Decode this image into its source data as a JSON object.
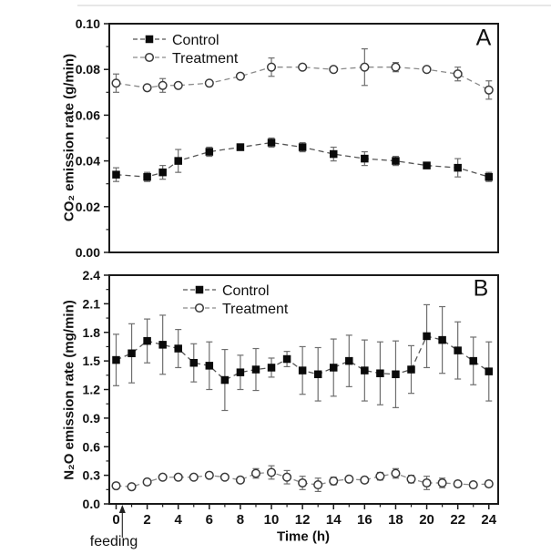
{
  "style_colors": {
    "background": "#ffffff",
    "axis": "#1a1a1a",
    "text": "#111111",
    "control_marker": "#0a0a0a",
    "control_line": "#555555",
    "treatment_stroke": "#3a3a3a",
    "treatment_line": "#8a8a8a",
    "error_bar": "#6e6e6e",
    "top_rule": "#e7e7e7"
  },
  "chart_data": [
    {
      "type": "line",
      "panel_label": "A",
      "ylabel": "CO₂ emission rate (g/min)",
      "xlabel": "",
      "xlim": [
        -0.44,
        24.6
      ],
      "ylim": [
        0,
        0.1
      ],
      "yticks": [
        0,
        0.02,
        0.04,
        0.06,
        0.08,
        0.1
      ],
      "ytick_labels": [
        "0.00",
        "0.02",
        "0.04",
        "0.06",
        "0.08",
        "0.10"
      ],
      "y_minor_step": 0.01,
      "grid": false,
      "legend_position": "top-left-inside",
      "x": [
        0,
        2,
        3,
        4,
        6,
        8,
        10,
        12,
        14,
        16,
        18,
        20,
        22,
        24
      ],
      "series": [
        {
          "name": "Control",
          "marker": "filled-square",
          "values": [
            0.034,
            0.033,
            0.035,
            0.04,
            0.044,
            0.046,
            0.048,
            0.046,
            0.043,
            0.041,
            0.04,
            0.038,
            0.037,
            0.033
          ],
          "errors": [
            0.003,
            0.002,
            0.003,
            0.005,
            0.002,
            0.001,
            0.002,
            0.002,
            0.003,
            0.003,
            0.002,
            0.001,
            0.004,
            0.002
          ]
        },
        {
          "name": "Treatment",
          "marker": "open-circle",
          "values": [
            0.074,
            0.072,
            0.073,
            0.073,
            0.074,
            0.077,
            0.081,
            0.081,
            0.08,
            0.081,
            0.081,
            0.08,
            0.078,
            0.071
          ],
          "errors": [
            0.004,
            0.001,
            0.003,
            0.001,
            0.001,
            0.001,
            0.004,
            0.001,
            0.001,
            0.008,
            0.002,
            0.001,
            0.003,
            0.004
          ]
        }
      ]
    },
    {
      "type": "line",
      "panel_label": "B",
      "ylabel": "N₂O emission rate (mg/min)",
      "xlabel": "Time (h)",
      "xlim": [
        -0.44,
        24.6
      ],
      "ylim": [
        0,
        2.4
      ],
      "yticks": [
        0,
        0.3,
        0.6,
        0.9,
        1.2,
        1.5,
        1.8,
        2.1,
        2.4
      ],
      "ytick_labels": [
        "0.0",
        "0.3",
        "0.6",
        "0.9",
        "1.2",
        "1.5",
        "1.8",
        "2.1",
        "2.4"
      ],
      "y_minor_step": 0.15,
      "xticks": [
        0,
        2,
        4,
        6,
        8,
        10,
        12,
        14,
        16,
        18,
        20,
        22,
        24
      ],
      "xtick_labels": [
        "0",
        "2",
        "4",
        "6",
        "8",
        "10",
        "12",
        "14",
        "16",
        "18",
        "20",
        "22",
        "24"
      ],
      "x_minor_step": 1,
      "grid": false,
      "legend_position": "top-center-inside",
      "annotation": {
        "text": "feeding",
        "x_hours": 0.4
      },
      "x": [
        0,
        1,
        2,
        3,
        4,
        5,
        6,
        7,
        8,
        9,
        10,
        11,
        12,
        13,
        14,
        15,
        16,
        17,
        18,
        19,
        20,
        21,
        22,
        23,
        24
      ],
      "series": [
        {
          "name": "Control",
          "marker": "filled-square",
          "values": [
            1.51,
            1.58,
            1.71,
            1.67,
            1.63,
            1.48,
            1.45,
            1.3,
            1.38,
            1.41,
            1.43,
            1.52,
            1.4,
            1.36,
            1.43,
            1.5,
            1.4,
            1.37,
            1.36,
            1.41,
            1.76,
            1.72,
            1.61,
            1.5,
            1.39
          ],
          "errors": [
            0.27,
            0.31,
            0.23,
            0.31,
            0.2,
            0.2,
            0.25,
            0.32,
            0.18,
            0.22,
            0.1,
            0.08,
            0.25,
            0.28,
            0.3,
            0.27,
            0.32,
            0.33,
            0.35,
            0.25,
            0.33,
            0.35,
            0.3,
            0.25,
            0.31
          ]
        },
        {
          "name": "Treatment",
          "marker": "open-circle",
          "values": [
            0.19,
            0.18,
            0.23,
            0.28,
            0.28,
            0.28,
            0.3,
            0.28,
            0.25,
            0.32,
            0.33,
            0.28,
            0.22,
            0.2,
            0.24,
            0.26,
            0.25,
            0.29,
            0.32,
            0.26,
            0.22,
            0.22,
            0.21,
            0.2,
            0.21
          ],
          "errors": [
            0.02,
            0.03,
            0.03,
            0.03,
            0.03,
            0.02,
            0.02,
            0.02,
            0.03,
            0.05,
            0.07,
            0.07,
            0.07,
            0.07,
            0.04,
            0.03,
            0.03,
            0.04,
            0.05,
            0.04,
            0.07,
            0.05,
            0.03,
            0.02,
            0.03
          ]
        }
      ]
    }
  ]
}
